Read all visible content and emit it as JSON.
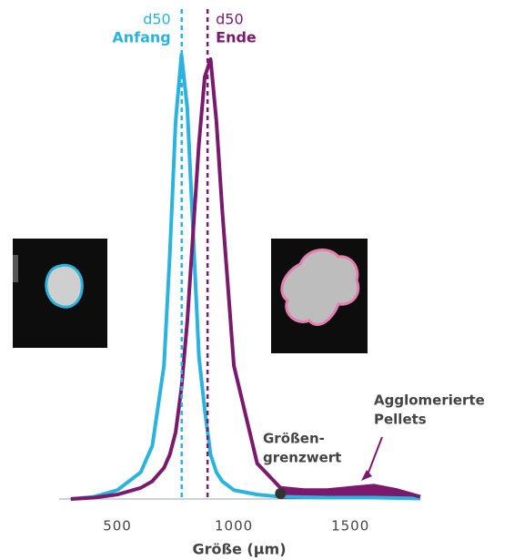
{
  "chart_data": {
    "type": "line",
    "xlabel": "Größe (µm)",
    "x": [
      300,
      400,
      500,
      600,
      650,
      700,
      725,
      750,
      775,
      800,
      825,
      850,
      875,
      900,
      925,
      950,
      1000,
      1100,
      1200,
      1300,
      1400,
      1500,
      1600,
      1700,
      1800
    ],
    "series": [
      {
        "name": "Anfang",
        "color": "#2bb3e0",
        "d50": {
          "label": "d50",
          "value": 776
        },
        "values": [
          0,
          0.5,
          2,
          6,
          12,
          30,
          55,
          85,
          100,
          88,
          60,
          32,
          20,
          10,
          6,
          4,
          2,
          1,
          0.5,
          0.4,
          0.3,
          0.3,
          0.3,
          0.2,
          0.1
        ]
      },
      {
        "name": "Ende",
        "color": "#7b1a6d",
        "d50": {
          "label": "d50",
          "value": 887
        },
        "values": [
          0,
          0.3,
          1,
          2.5,
          4,
          7,
          10,
          15,
          25,
          40,
          60,
          80,
          95,
          99,
          85,
          65,
          30,
          8,
          2.5,
          2,
          2,
          2.5,
          3,
          2,
          0.5
        ]
      }
    ],
    "xlim": [
      250,
      1800
    ],
    "xticks": [
      500,
      1000,
      1500
    ],
    "ylim": [
      0,
      100
    ],
    "size_cutoff": {
      "label_lines": [
        "Größen-",
        "grenzwert"
      ],
      "value": 1200
    },
    "annotation": {
      "lines": [
        "Agglomerierte",
        "Pellets"
      ]
    }
  }
}
